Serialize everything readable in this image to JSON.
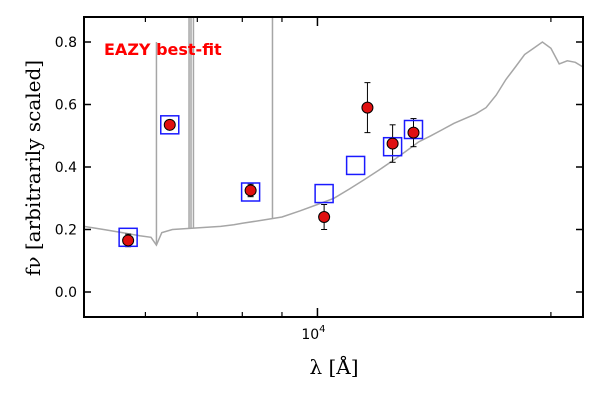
{
  "chart_data": {
    "type": "scatter",
    "xscale": "log",
    "xlim": [
      5000,
      22000
    ],
    "ylim": [
      -0.08,
      0.88
    ],
    "xticks_major": [
      {
        "value": 10000,
        "label": "10^4",
        "base": "10",
        "exp": "4"
      }
    ],
    "xticks_minor": [
      6000,
      7000,
      8000,
      9000,
      20000
    ],
    "yticks": [
      0.0,
      0.2,
      0.4,
      0.6,
      0.8
    ],
    "ytick_labels": [
      "0.0",
      "0.2",
      "0.4",
      "0.6",
      "0.8"
    ],
    "xlabel": "λ [Å]",
    "ylabel": "fν [arbitrarily scaled]",
    "grid": false,
    "annotation": {
      "text": "EAZY best-fit",
      "color": "#ff0000"
    },
    "colors": {
      "template": "#a6a6a6",
      "observed_fill": "#e01010",
      "observed_edge": "#000000",
      "model_box": "#1a1aff",
      "errorbar": "#000000"
    },
    "series": [
      {
        "kind": "template_spectrum",
        "x": [
          5000,
          5300,
          5600,
          5900,
          6100,
          6200,
          6300,
          6500,
          7000,
          7500,
          7800,
          8000,
          8500,
          9000,
          9500,
          10000,
          10500,
          11000,
          11500,
          12000,
          12500,
          13000,
          13500,
          14000,
          14500,
          15000,
          16000,
          16500,
          17000,
          17500,
          18000,
          18500,
          19000,
          19500,
          20000,
          20500,
          21000,
          21500,
          22000
        ],
        "y": [
          0.21,
          0.2,
          0.19,
          0.18,
          0.175,
          0.15,
          0.19,
          0.2,
          0.205,
          0.21,
          0.215,
          0.22,
          0.23,
          0.24,
          0.26,
          0.28,
          0.3,
          0.33,
          0.36,
          0.39,
          0.42,
          0.45,
          0.48,
          0.5,
          0.52,
          0.54,
          0.57,
          0.59,
          0.63,
          0.68,
          0.72,
          0.76,
          0.78,
          0.8,
          0.78,
          0.73,
          0.74,
          0.735,
          0.72
        ],
        "emission_lines": [
          {
            "x": 6200,
            "y": 0.8
          },
          {
            "x": 6830,
            "y": 0.88
          },
          {
            "x": 6870,
            "y": 0.88
          },
          {
            "x": 6920,
            "y": 0.88
          },
          {
            "x": 8750,
            "y": 0.88
          }
        ]
      },
      {
        "kind": "observed_photometry",
        "points": [
          {
            "x": 5700,
            "y": 0.165,
            "yerr": 0.02
          },
          {
            "x": 6450,
            "y": 0.535,
            "yerr": 0.015
          },
          {
            "x": 8200,
            "y": 0.325,
            "yerr": 0.02
          },
          {
            "x": 10200,
            "y": 0.24,
            "yerr": 0.04
          },
          {
            "x": 11600,
            "y": 0.59,
            "yerr": 0.08
          },
          {
            "x": 12500,
            "y": 0.475,
            "yerr": 0.06
          },
          {
            "x": 13300,
            "y": 0.51,
            "yerr": 0.045
          }
        ]
      },
      {
        "kind": "model_photometry",
        "points": [
          {
            "x": 5700,
            "y": 0.175
          },
          {
            "x": 6450,
            "y": 0.535
          },
          {
            "x": 8200,
            "y": 0.32
          },
          {
            "x": 10200,
            "y": 0.315
          },
          {
            "x": 11200,
            "y": 0.405
          },
          {
            "x": 12500,
            "y": 0.465
          },
          {
            "x": 13300,
            "y": 0.52
          }
        ]
      }
    ]
  }
}
